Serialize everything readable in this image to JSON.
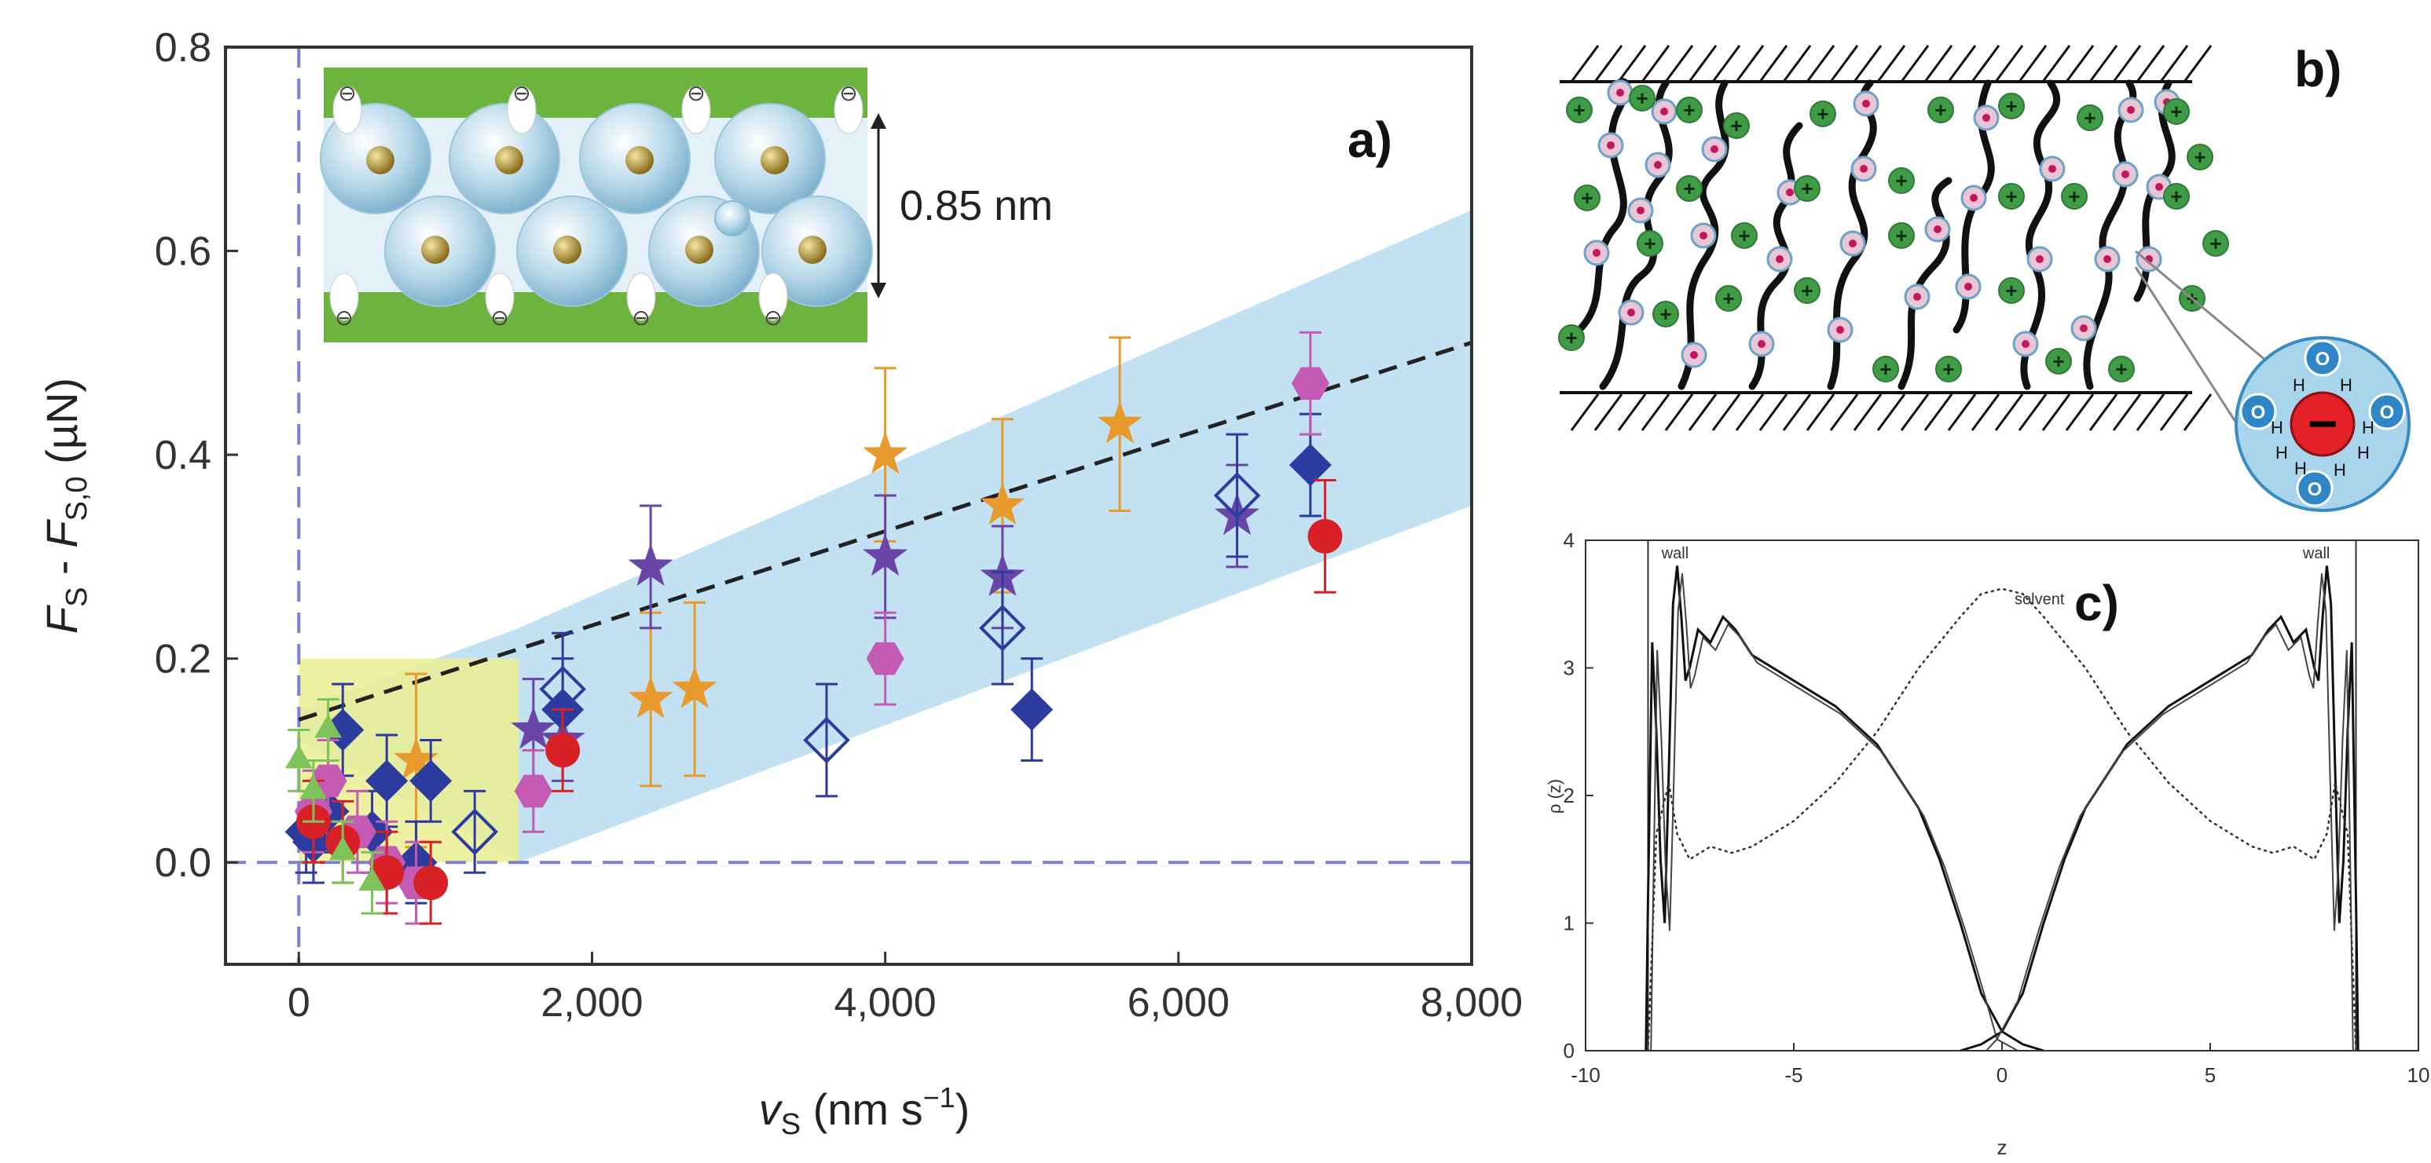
{
  "figure": {
    "panel_a_label": "a)",
    "panel_b_label": "b)",
    "panel_c_label": "c)"
  },
  "inset_a": {
    "gap_label": "0.85 nm",
    "anion_symbol": "⊖"
  },
  "panel_b": {
    "cation_symbol": "+",
    "anion_symbol": "−",
    "water_o": "O",
    "water_h": "H"
  },
  "colors": {
    "band": "#bfe0f2",
    "yellow": "#eaef90",
    "dash": "#222222",
    "zero_line": "#7b82c8",
    "orange": "#e89a2c",
    "purple": "#6a45a8",
    "navy": "#2e3b9e",
    "magenta": "#c35ab4",
    "red": "#d82127",
    "green": "#7dc35a",
    "ion_green": "#3f9b45",
    "bead": "#e8c6d6"
  },
  "chart_data": [
    {
      "id": "panel-a",
      "type": "scatter",
      "title": "",
      "xlabel": "v_S (nm s^-1)",
      "xlabel_parts": {
        "var": "v",
        "sub": "S",
        "unit": " (nm s",
        "sup": "−1",
        "close": ")"
      },
      "ylabel": "F_S - F_S,0 (µN)",
      "ylabel_parts": {
        "v1": "F",
        "s1": "S",
        "mid": " - ",
        "v2": "F",
        "s2": "S,0",
        "unit": "  (µN)"
      },
      "xlim": [
        -500,
        8000
      ],
      "ylim": [
        -0.1,
        0.8
      ],
      "x_ticks": [
        0,
        2000,
        4000,
        6000,
        8000
      ],
      "x_tick_labels": [
        "0",
        "2,000",
        "4,000",
        "6,000",
        "8,000"
      ],
      "y_ticks": [
        0.0,
        0.2,
        0.4,
        0.6,
        0.8
      ],
      "y_tick_labels": [
        "0.0",
        "0.2",
        "0.4",
        "0.6",
        "0.8"
      ],
      "fit_line": {
        "x": [
          0,
          8000
        ],
        "y": [
          0.14,
          0.51
        ]
      },
      "band": {
        "x": [
          0,
          1500,
          8000
        ],
        "upper": [
          0.15,
          0.23,
          0.64
        ],
        "lower": [
          0.12,
          0.0,
          0.35
        ]
      },
      "highlight_box": {
        "x": [
          0,
          1500
        ],
        "y": [
          0.0,
          0.2
        ]
      },
      "series": [
        {
          "name": "orange stars",
          "marker": "star",
          "color": "orange",
          "filled": true,
          "points": [
            [
              800,
              0.1,
              0.085
            ],
            [
              2400,
              0.16,
              0.085
            ],
            [
              2700,
              0.17,
              0.085
            ],
            [
              4000,
              0.4,
              0.085
            ],
            [
              4800,
              0.35,
              0.085
            ],
            [
              5600,
              0.43,
              0.085
            ]
          ]
        },
        {
          "name": "purple stars",
          "marker": "star",
          "color": "purple",
          "filled": true,
          "points": [
            [
              1600,
              0.13,
              0.05
            ],
            [
              1800,
              0.12,
              0.04
            ],
            [
              2400,
              0.29,
              0.06
            ],
            [
              4000,
              0.3,
              0.06
            ],
            [
              4800,
              0.28,
              0.05
            ],
            [
              6400,
              0.34,
              0.05
            ]
          ]
        },
        {
          "name": "navy diamonds",
          "marker": "diamond",
          "color": "navy",
          "filled": true,
          "points": [
            [
              50,
              0.03,
              0.04
            ],
            [
              100,
              0.02,
              0.04
            ],
            [
              200,
              0.05,
              0.04
            ],
            [
              300,
              0.13,
              0.045
            ],
            [
              500,
              0.03,
              0.04
            ],
            [
              600,
              0.08,
              0.045
            ],
            [
              800,
              0.0,
              0.04
            ],
            [
              900,
              0.08,
              0.04
            ],
            [
              1800,
              0.15,
              0.05
            ],
            [
              5000,
              0.15,
              0.05
            ],
            [
              6900,
              0.39,
              0.05
            ]
          ]
        },
        {
          "name": "navy open diamonds",
          "marker": "diamond",
          "color": "navy",
          "filled": false,
          "points": [
            [
              1200,
              0.03,
              0.04
            ],
            [
              1800,
              0.17,
              0.055
            ],
            [
              3600,
              0.12,
              0.055
            ],
            [
              4800,
              0.23,
              0.055
            ],
            [
              6400,
              0.36,
              0.06
            ]
          ]
        },
        {
          "name": "magenta hexagons",
          "marker": "hexagon",
          "color": "magenta",
          "filled": true,
          "points": [
            [
              100,
              0.05,
              0.04
            ],
            [
              200,
              0.08,
              0.04
            ],
            [
              400,
              0.03,
              0.04
            ],
            [
              600,
              0.0,
              0.04
            ],
            [
              800,
              -0.02,
              0.04
            ],
            [
              1600,
              0.07,
              0.04
            ],
            [
              4000,
              0.2,
              0.045
            ],
            [
              6900,
              0.47,
              0.05
            ]
          ]
        },
        {
          "name": "red circles",
          "marker": "circle",
          "color": "red",
          "filled": true,
          "points": [
            [
              100,
              0.04,
              0.04
            ],
            [
              300,
              0.02,
              0.04
            ],
            [
              600,
              -0.01,
              0.04
            ],
            [
              900,
              -0.02,
              0.04
            ],
            [
              1800,
              0.11,
              0.04
            ],
            [
              7000,
              0.32,
              0.055
            ]
          ]
        },
        {
          "name": "green triangles",
          "marker": "triangle",
          "color": "green",
          "filled": true,
          "points": [
            [
              0,
              0.1,
              0.03
            ],
            [
              100,
              0.07,
              0.03
            ],
            [
              200,
              0.13,
              0.03
            ],
            [
              300,
              0.01,
              0.03
            ],
            [
              500,
              -0.02,
              0.03
            ]
          ]
        }
      ]
    },
    {
      "id": "panel-c",
      "type": "line",
      "title": "",
      "xlabel": "z",
      "ylabel": "ρ (z)",
      "xlim": [
        -10,
        10
      ],
      "ylim": [
        0,
        4
      ],
      "x_ticks": [
        -10,
        -5,
        0,
        5,
        10
      ],
      "x_tick_labels": [
        "-10",
        "-5",
        "0",
        "5",
        "10"
      ],
      "y_ticks": [
        0,
        1,
        2,
        3,
        4
      ],
      "y_tick_labels": [
        "0",
        "1",
        "2",
        "3",
        "4"
      ],
      "walls": [
        -8.5,
        8.5
      ],
      "annotations": [
        {
          "text": "wall",
          "x": -7.85,
          "y": 3.86
        },
        {
          "text": "wall",
          "x": 7.55,
          "y": 3.86
        },
        {
          "text": "solvent",
          "x": 0.9,
          "y": 3.5
        }
      ],
      "series": [
        {
          "name": "left ions",
          "style": "solid",
          "x": [
            -8.55,
            -8.5,
            -8.4,
            -8.3,
            -8.2,
            -8.1,
            -8.0,
            -7.9,
            -7.8,
            -7.7,
            -7.6,
            -7.5,
            -7.3,
            -7.0,
            -6.7,
            -6.4,
            -6.0,
            -5.5,
            -5.0,
            -4.0,
            -3.0,
            -2.0,
            -1.5,
            -1.0,
            -0.5,
            0.0,
            0.5,
            1.0
          ],
          "y": [
            0,
            1.2,
            3.2,
            2.5,
            1.5,
            1.0,
            2.2,
            3.5,
            3.8,
            3.4,
            2.9,
            3.0,
            3.3,
            3.2,
            3.4,
            3.3,
            3.1,
            3.0,
            2.9,
            2.7,
            2.4,
            1.9,
            1.5,
            1.0,
            0.45,
            0.15,
            0.05,
            0.0
          ]
        },
        {
          "name": "right ions",
          "style": "solid",
          "x": [
            -1.0,
            -0.5,
            0.0,
            0.5,
            1.0,
            1.5,
            2.0,
            3.0,
            4.0,
            5.0,
            5.5,
            6.0,
            6.4,
            6.7,
            7.0,
            7.3,
            7.5,
            7.6,
            7.7,
            7.8,
            7.9,
            8.0,
            8.1,
            8.2,
            8.3,
            8.4,
            8.5,
            8.55
          ],
          "y": [
            0.0,
            0.05,
            0.15,
            0.45,
            1.0,
            1.5,
            1.9,
            2.4,
            2.7,
            2.9,
            3.0,
            3.1,
            3.3,
            3.4,
            3.2,
            3.3,
            3.0,
            2.9,
            3.4,
            3.8,
            3.5,
            2.2,
            1.0,
            1.5,
            2.5,
            3.2,
            1.2,
            0
          ]
        },
        {
          "name": "solvent",
          "style": "dotted",
          "x": [
            -8.5,
            -8.3,
            -8.0,
            -7.8,
            -7.5,
            -7.0,
            -6.5,
            -6.0,
            -5.0,
            -4.0,
            -3.0,
            -2.0,
            -1.0,
            -0.5,
            0.0,
            0.5,
            1.0,
            2.0,
            3.0,
            4.0,
            5.0,
            6.0,
            6.5,
            7.0,
            7.5,
            7.8,
            8.0,
            8.3,
            8.5
          ],
          "y": [
            0.0,
            1.7,
            2.1,
            1.7,
            1.5,
            1.6,
            1.55,
            1.6,
            1.8,
            2.1,
            2.5,
            3.0,
            3.4,
            3.58,
            3.62,
            3.58,
            3.4,
            3.0,
            2.5,
            2.1,
            1.8,
            1.6,
            1.55,
            1.6,
            1.5,
            1.7,
            2.1,
            1.7,
            0.0
          ]
        }
      ]
    }
  ]
}
